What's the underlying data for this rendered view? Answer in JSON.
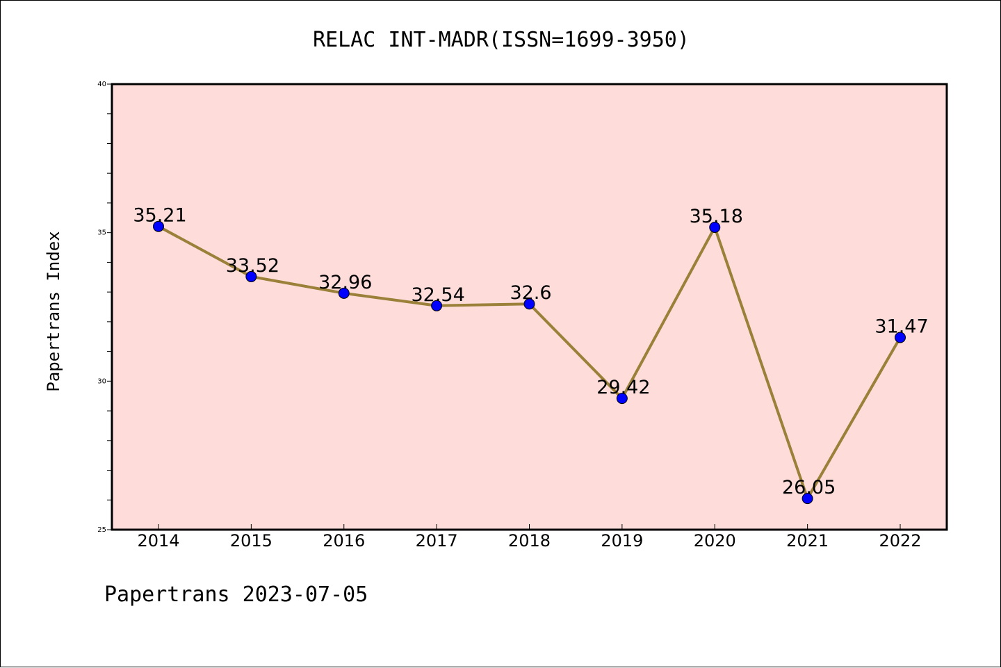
{
  "chart_data": {
    "type": "line",
    "title": "RELAC INT-MADR(ISSN=1699-3950)",
    "xlabel": "",
    "ylabel": "Papertrans Index",
    "footer": "Papertrans 2023-07-05",
    "categories": [
      "2014",
      "2015",
      "2016",
      "2017",
      "2018",
      "2019",
      "2020",
      "2021",
      "2022"
    ],
    "values": [
      35.21,
      33.52,
      32.96,
      32.54,
      32.6,
      29.42,
      35.18,
      26.05,
      31.47
    ],
    "data_labels": [
      "35.21",
      "33.52",
      "32.96",
      "32.54",
      "32.6",
      "29.42",
      "35.18",
      "26.05",
      "31.47"
    ],
    "ylim": [
      25,
      40
    ],
    "yticks": [
      "25",
      "30",
      "35",
      "40"
    ],
    "grid": false,
    "legend": "none",
    "colors": {
      "plot_background": "#fddcd9",
      "line": "#9a8038",
      "marker": "#0000ff",
      "axis": "#000000"
    }
  }
}
